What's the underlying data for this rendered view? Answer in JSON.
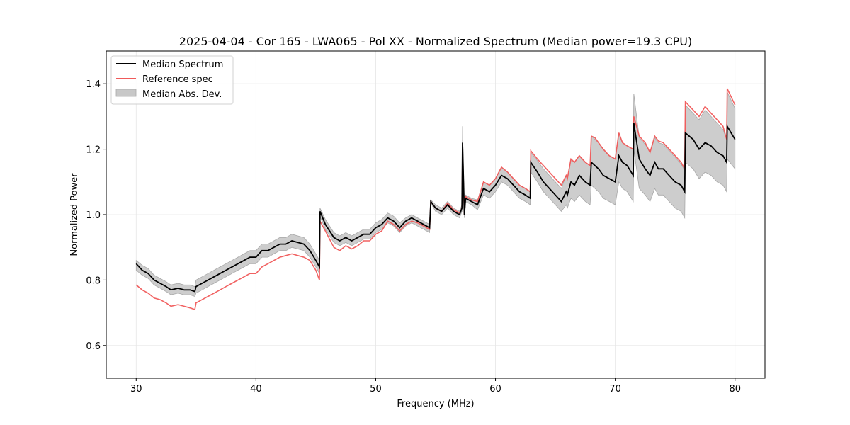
{
  "chart_data": {
    "type": "line",
    "title": "2025-04-04 - Cor 165 - LWA065 - Pol XX - Normalized Spectrum (Median power=19.3 CPU)",
    "xlabel": "Frequency (MHz)",
    "ylabel": "Normalized Power",
    "xlim": [
      27.5,
      82.5
    ],
    "ylim": [
      0.5,
      1.5
    ],
    "xticks": [
      30,
      40,
      50,
      60,
      70,
      80
    ],
    "xtick_labels": [
      "30",
      "40",
      "50",
      "60",
      "70",
      "80"
    ],
    "yticks": [
      0.6,
      0.8,
      1.0,
      1.2,
      1.4
    ],
    "ytick_labels": [
      "0.6",
      "0.8",
      "1.0",
      "1.2",
      "1.4"
    ],
    "grid": true,
    "legend_position": "top-left",
    "legend": [
      {
        "label": "Median Spectrum",
        "kind": "line",
        "color": "#000000"
      },
      {
        "label": "Reference spec",
        "kind": "line",
        "color": "#f05a5a"
      },
      {
        "label": "Median Abs. Dev.",
        "kind": "patch",
        "color": "#c8c8c8"
      }
    ],
    "series": [
      {
        "name": "Median Spectrum",
        "color": "#000000",
        "x": [
          30.0,
          30.5,
          31.0,
          31.5,
          32.0,
          32.5,
          32.9,
          33.5,
          34.0,
          34.5,
          34.9,
          35.0,
          35.5,
          36.0,
          36.5,
          37.0,
          37.5,
          38.0,
          38.5,
          39.0,
          39.5,
          40.0,
          40.5,
          41.0,
          41.5,
          42.0,
          42.5,
          43.0,
          43.5,
          44.0,
          44.5,
          45.0,
          45.3,
          45.35,
          45.8,
          46.5,
          47.0,
          47.5,
          48.0,
          48.5,
          49.0,
          49.5,
          50.0,
          50.5,
          51.0,
          51.5,
          52.0,
          52.5,
          53.0,
          53.5,
          54.0,
          54.5,
          54.6,
          55.0,
          55.5,
          56.0,
          56.5,
          57.0,
          57.2,
          57.25,
          57.4,
          57.5,
          58.0,
          58.5,
          59.0,
          59.5,
          60.0,
          60.5,
          61.0,
          61.5,
          62.0,
          62.5,
          62.9,
          62.95,
          63.5,
          64.0,
          64.5,
          65.0,
          65.5,
          65.9,
          66.0,
          66.3,
          66.6,
          67.0,
          67.5,
          67.9,
          68.0,
          68.3,
          68.6,
          69.0,
          69.5,
          70.0,
          70.3,
          70.6,
          71.0,
          71.5,
          71.55,
          72.0,
          72.5,
          72.9,
          73.3,
          73.6,
          74.0,
          74.5,
          75.0,
          75.5,
          75.8,
          75.85,
          76.5,
          77.0,
          77.5,
          78.0,
          78.5,
          79.0,
          79.3,
          79.35,
          80.0
        ],
        "y": [
          0.85,
          0.83,
          0.82,
          0.8,
          0.79,
          0.78,
          0.77,
          0.775,
          0.77,
          0.77,
          0.765,
          0.78,
          0.79,
          0.8,
          0.81,
          0.82,
          0.83,
          0.84,
          0.85,
          0.86,
          0.87,
          0.87,
          0.89,
          0.89,
          0.9,
          0.91,
          0.91,
          0.92,
          0.915,
          0.91,
          0.89,
          0.86,
          0.84,
          1.01,
          0.97,
          0.93,
          0.92,
          0.93,
          0.92,
          0.93,
          0.94,
          0.94,
          0.96,
          0.97,
          0.99,
          0.98,
          0.96,
          0.98,
          0.99,
          0.98,
          0.97,
          0.96,
          1.04,
          1.02,
          1.01,
          1.03,
          1.01,
          1.0,
          1.02,
          1.22,
          1.0,
          1.05,
          1.04,
          1.03,
          1.08,
          1.07,
          1.09,
          1.12,
          1.11,
          1.09,
          1.07,
          1.06,
          1.05,
          1.16,
          1.13,
          1.1,
          1.08,
          1.06,
          1.04,
          1.07,
          1.06,
          1.1,
          1.09,
          1.12,
          1.1,
          1.09,
          1.16,
          1.15,
          1.14,
          1.12,
          1.11,
          1.1,
          1.18,
          1.16,
          1.15,
          1.12,
          1.28,
          1.17,
          1.14,
          1.12,
          1.16,
          1.14,
          1.14,
          1.12,
          1.1,
          1.09,
          1.07,
          1.25,
          1.23,
          1.2,
          1.22,
          1.21,
          1.19,
          1.18,
          1.16,
          1.27,
          1.23
        ]
      },
      {
        "name": "Reference spec",
        "color": "#f05a5a",
        "x": [
          30.0,
          30.5,
          31.0,
          31.5,
          32.0,
          32.5,
          32.9,
          33.5,
          34.0,
          34.5,
          34.9,
          35.0,
          35.5,
          36.0,
          36.5,
          37.0,
          37.5,
          38.0,
          38.5,
          39.0,
          39.5,
          40.0,
          40.5,
          41.0,
          41.5,
          42.0,
          42.5,
          43.0,
          43.5,
          44.0,
          44.5,
          45.0,
          45.3,
          45.35,
          45.8,
          46.5,
          47.0,
          47.5,
          48.0,
          48.5,
          49.0,
          49.5,
          50.0,
          50.5,
          51.0,
          51.5,
          52.0,
          52.5,
          53.0,
          53.5,
          54.0,
          54.5,
          54.6,
          55.0,
          55.5,
          56.0,
          56.5,
          57.0,
          57.2,
          57.25,
          57.4,
          57.5,
          58.0,
          58.5,
          59.0,
          59.5,
          60.0,
          60.5,
          61.0,
          61.5,
          62.0,
          62.5,
          62.9,
          62.95,
          63.5,
          64.0,
          64.5,
          65.0,
          65.5,
          65.9,
          66.0,
          66.3,
          66.6,
          67.0,
          67.5,
          67.9,
          68.0,
          68.3,
          68.6,
          69.0,
          69.5,
          70.0,
          70.3,
          70.6,
          71.0,
          71.5,
          71.55,
          72.0,
          72.5,
          72.9,
          73.3,
          73.6,
          74.0,
          74.5,
          75.0,
          75.5,
          75.8,
          75.85,
          76.5,
          77.0,
          77.5,
          78.0,
          78.5,
          79.0,
          79.3,
          79.35,
          80.0
        ],
        "y": [
          0.785,
          0.77,
          0.76,
          0.745,
          0.74,
          0.73,
          0.72,
          0.725,
          0.72,
          0.715,
          0.71,
          0.73,
          0.74,
          0.75,
          0.76,
          0.77,
          0.78,
          0.79,
          0.8,
          0.81,
          0.82,
          0.82,
          0.84,
          0.85,
          0.86,
          0.87,
          0.875,
          0.88,
          0.875,
          0.87,
          0.86,
          0.83,
          0.8,
          0.98,
          0.95,
          0.9,
          0.89,
          0.905,
          0.895,
          0.905,
          0.92,
          0.92,
          0.94,
          0.95,
          0.98,
          0.97,
          0.95,
          0.97,
          0.98,
          0.975,
          0.965,
          0.955,
          1.04,
          1.02,
          1.01,
          1.035,
          1.015,
          1.005,
          1.02,
          1.19,
          1.0,
          1.055,
          1.045,
          1.04,
          1.1,
          1.09,
          1.11,
          1.145,
          1.13,
          1.11,
          1.09,
          1.08,
          1.07,
          1.195,
          1.17,
          1.15,
          1.13,
          1.11,
          1.09,
          1.12,
          1.11,
          1.17,
          1.16,
          1.18,
          1.16,
          1.15,
          1.24,
          1.235,
          1.22,
          1.2,
          1.18,
          1.17,
          1.25,
          1.22,
          1.21,
          1.2,
          1.3,
          1.24,
          1.22,
          1.19,
          1.24,
          1.225,
          1.22,
          1.2,
          1.18,
          1.16,
          1.14,
          1.345,
          1.32,
          1.3,
          1.33,
          1.31,
          1.29,
          1.27,
          1.23,
          1.385,
          1.335
        ]
      }
    ],
    "band": {
      "name": "Median Abs. Dev.",
      "color": "#c8c8c8",
      "x": [
        30.0,
        30.5,
        31.0,
        31.5,
        32.0,
        32.5,
        32.9,
        33.5,
        34.0,
        34.5,
        34.9,
        35.0,
        35.5,
        36.0,
        36.5,
        37.0,
        37.5,
        38.0,
        38.5,
        39.0,
        39.5,
        40.0,
        40.5,
        41.0,
        41.5,
        42.0,
        42.5,
        43.0,
        43.5,
        44.0,
        44.5,
        45.0,
        45.3,
        45.35,
        45.8,
        46.5,
        47.0,
        47.5,
        48.0,
        48.5,
        49.0,
        49.5,
        50.0,
        50.5,
        51.0,
        51.5,
        52.0,
        52.5,
        53.0,
        53.5,
        54.0,
        54.5,
        54.6,
        55.0,
        55.5,
        56.0,
        56.5,
        57.0,
        57.2,
        57.25,
        57.4,
        57.5,
        58.0,
        58.5,
        59.0,
        59.5,
        60.0,
        60.5,
        61.0,
        61.5,
        62.0,
        62.5,
        62.9,
        62.95,
        63.5,
        64.0,
        64.5,
        65.0,
        65.5,
        65.9,
        66.0,
        66.3,
        66.6,
        67.0,
        67.5,
        67.9,
        68.0,
        68.3,
        68.6,
        69.0,
        69.5,
        70.0,
        70.3,
        70.6,
        71.0,
        71.5,
        71.55,
        72.0,
        72.5,
        72.9,
        73.3,
        73.6,
        74.0,
        74.5,
        75.0,
        75.5,
        75.8,
        75.85,
        76.5,
        77.0,
        77.5,
        78.0,
        78.5,
        79.0,
        79.3,
        79.35,
        80.0
      ],
      "upper": [
        0.86,
        0.845,
        0.835,
        0.815,
        0.805,
        0.795,
        0.785,
        0.79,
        0.785,
        0.785,
        0.78,
        0.8,
        0.81,
        0.82,
        0.83,
        0.84,
        0.85,
        0.86,
        0.87,
        0.88,
        0.89,
        0.89,
        0.91,
        0.91,
        0.92,
        0.93,
        0.93,
        0.94,
        0.935,
        0.93,
        0.91,
        0.88,
        0.86,
        1.02,
        0.985,
        0.945,
        0.935,
        0.945,
        0.935,
        0.945,
        0.955,
        0.955,
        0.975,
        0.985,
        1.005,
        0.995,
        0.975,
        0.99,
        1.0,
        0.99,
        0.98,
        0.97,
        1.045,
        1.03,
        1.02,
        1.04,
        1.02,
        1.01,
        1.03,
        1.27,
        1.01,
        1.06,
        1.05,
        1.045,
        1.1,
        1.09,
        1.11,
        1.145,
        1.13,
        1.11,
        1.09,
        1.08,
        1.07,
        1.19,
        1.165,
        1.14,
        1.12,
        1.1,
        1.08,
        1.12,
        1.11,
        1.17,
        1.16,
        1.18,
        1.16,
        1.15,
        1.24,
        1.23,
        1.22,
        1.2,
        1.18,
        1.17,
        1.25,
        1.22,
        1.21,
        1.2,
        1.37,
        1.235,
        1.215,
        1.19,
        1.235,
        1.22,
        1.215,
        1.195,
        1.175,
        1.155,
        1.135,
        1.335,
        1.31,
        1.29,
        1.32,
        1.3,
        1.28,
        1.26,
        1.23,
        1.375,
        1.325
      ],
      "lower": [
        0.83,
        0.815,
        0.805,
        0.785,
        0.775,
        0.765,
        0.755,
        0.76,
        0.755,
        0.755,
        0.75,
        0.76,
        0.77,
        0.78,
        0.79,
        0.8,
        0.81,
        0.82,
        0.83,
        0.84,
        0.85,
        0.85,
        0.87,
        0.87,
        0.88,
        0.89,
        0.89,
        0.9,
        0.895,
        0.89,
        0.87,
        0.84,
        0.82,
        0.995,
        0.955,
        0.915,
        0.905,
        0.915,
        0.905,
        0.915,
        0.925,
        0.925,
        0.945,
        0.955,
        0.975,
        0.965,
        0.945,
        0.965,
        0.975,
        0.965,
        0.955,
        0.945,
        1.035,
        1.01,
        1.0,
        1.02,
        1.0,
        0.99,
        1.01,
        1.19,
        0.99,
        1.04,
        1.03,
        1.015,
        1.06,
        1.05,
        1.07,
        1.1,
        1.09,
        1.07,
        1.05,
        1.04,
        1.03,
        1.13,
        1.1,
        1.07,
        1.05,
        1.03,
        1.01,
        1.03,
        1.02,
        1.05,
        1.04,
        1.06,
        1.04,
        1.03,
        1.09,
        1.08,
        1.07,
        1.05,
        1.04,
        1.03,
        1.1,
        1.08,
        1.07,
        1.04,
        1.2,
        1.08,
        1.06,
        1.04,
        1.08,
        1.06,
        1.06,
        1.04,
        1.02,
        1.01,
        0.99,
        1.16,
        1.14,
        1.11,
        1.13,
        1.12,
        1.1,
        1.09,
        1.07,
        1.17,
        1.14
      ]
    }
  }
}
